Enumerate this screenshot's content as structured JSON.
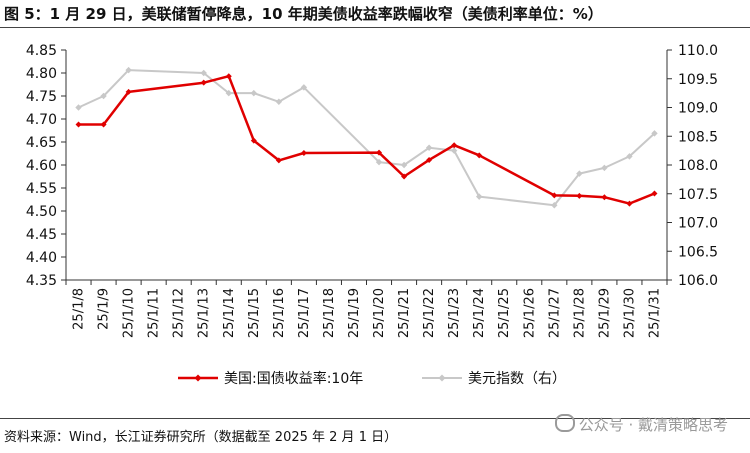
{
  "header": {
    "title": "图 5：1 月 29 日，美联储暂停降息，10 年期美债收益率跌幅收窄（美债利率单位：%）"
  },
  "footer": {
    "source": "资料来源：Wind，长江证券研究所（数据截至 2025 年 2 月 1 日）",
    "watermark": "公众号 · 戴清策略思考"
  },
  "chart_data": {
    "type": "line",
    "categories": [
      "25/1/8",
      "25/1/9",
      "25/1/10",
      "25/1/11",
      "25/1/12",
      "25/1/13",
      "25/1/14",
      "25/1/15",
      "25/1/16",
      "25/1/17",
      "25/1/18",
      "25/1/19",
      "25/1/20",
      "25/1/21",
      "25/1/22",
      "25/1/23",
      "25/1/24",
      "25/1/25",
      "25/1/26",
      "25/1/27",
      "25/1/28",
      "25/1/29",
      "25/1/30",
      "25/1/31"
    ],
    "left_axis": {
      "ylim": [
        4.35,
        4.85
      ],
      "ticks": [
        "4.85",
        "4.80",
        "4.75",
        "4.70",
        "4.65",
        "4.60",
        "4.55",
        "4.50",
        "4.45",
        "4.40",
        "4.35"
      ]
    },
    "right_axis": {
      "ylim": [
        106.0,
        110.0
      ],
      "ticks": [
        "110.0",
        "109.5",
        "109.0",
        "108.5",
        "108.0",
        "107.5",
        "107.0",
        "106.5",
        "106.0"
      ]
    },
    "series": [
      {
        "name": "美国:国债收益率:10年",
        "color": "#e00000",
        "axis": "left",
        "marker": "diamond",
        "values": [
          4.688,
          4.688,
          4.759,
          null,
          null,
          4.779,
          4.793,
          4.653,
          4.61,
          4.626,
          null,
          null,
          4.627,
          4.575,
          4.611,
          4.643,
          4.621,
          null,
          null,
          4.534,
          4.533,
          4.53,
          4.516,
          4.538
        ]
      },
      {
        "name": "美元指数（右）",
        "color": "#c8c8c8",
        "axis": "right",
        "marker": "diamond",
        "values": [
          109.0,
          109.2,
          109.65,
          null,
          null,
          109.6,
          109.25,
          109.25,
          109.1,
          109.35,
          null,
          null,
          108.05,
          108.0,
          108.3,
          108.25,
          107.45,
          null,
          null,
          107.3,
          107.85,
          107.95,
          108.15,
          108.55
        ]
      }
    ],
    "xlabel": "",
    "ylabel": "",
    "legend_position": "bottom",
    "grid": false
  }
}
